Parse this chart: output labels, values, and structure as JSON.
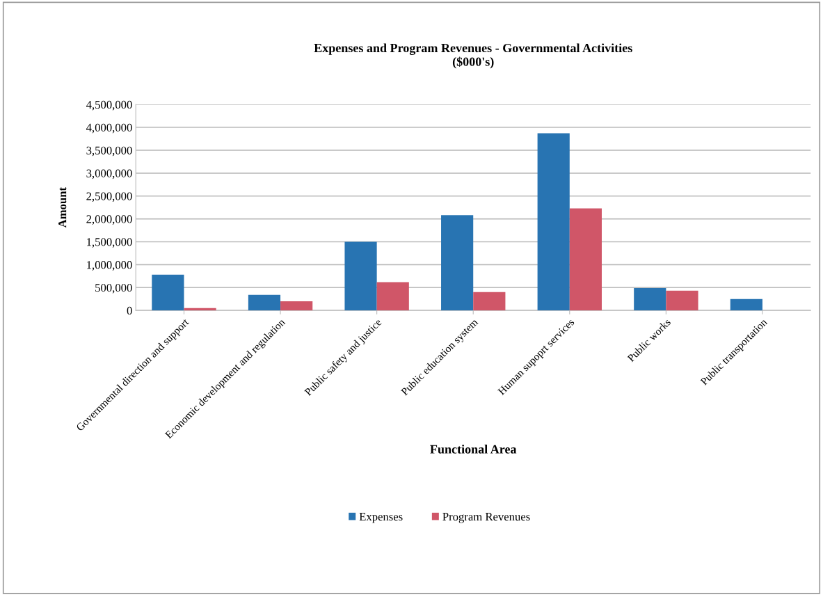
{
  "chart_data": {
    "type": "bar",
    "title": "Expenses and Program Revenues - Governmental Activities\n($000's)",
    "xlabel": "Functional Area",
    "ylabel": "Amount",
    "categories": [
      "Governmental direction and support",
      "Economic development and regulation",
      "Public safety and justice",
      "Public education system",
      "Human supoprt services",
      "Public works",
      "Public transportation"
    ],
    "series": [
      {
        "name": "Expenses",
        "color": "#2874b2",
        "values": [
          780000,
          340000,
          1500000,
          2080000,
          3870000,
          490000,
          250000
        ]
      },
      {
        "name": "Program Revenues",
        "color": "#d05668",
        "values": [
          50000,
          200000,
          620000,
          400000,
          2230000,
          430000,
          null
        ]
      }
    ],
    "ylim": [
      0,
      4500000
    ],
    "yticks": [
      {
        "value": 0,
        "label": "0"
      },
      {
        "value": 500000,
        "label": "500,000"
      },
      {
        "value": 1000000,
        "label": "1,000,000"
      },
      {
        "value": 1500000,
        "label": "1,500,000"
      },
      {
        "value": 2000000,
        "label": "2,000,000"
      },
      {
        "value": 2500000,
        "label": "2,500,000"
      },
      {
        "value": 3000000,
        "label": "3,000,000"
      },
      {
        "value": 3500000,
        "label": "3,500,000"
      },
      {
        "value": 4000000,
        "label": "4,000,000"
      },
      {
        "value": 4500000,
        "label": "4,500,000"
      }
    ],
    "grid": "y",
    "legend": "bottom"
  }
}
